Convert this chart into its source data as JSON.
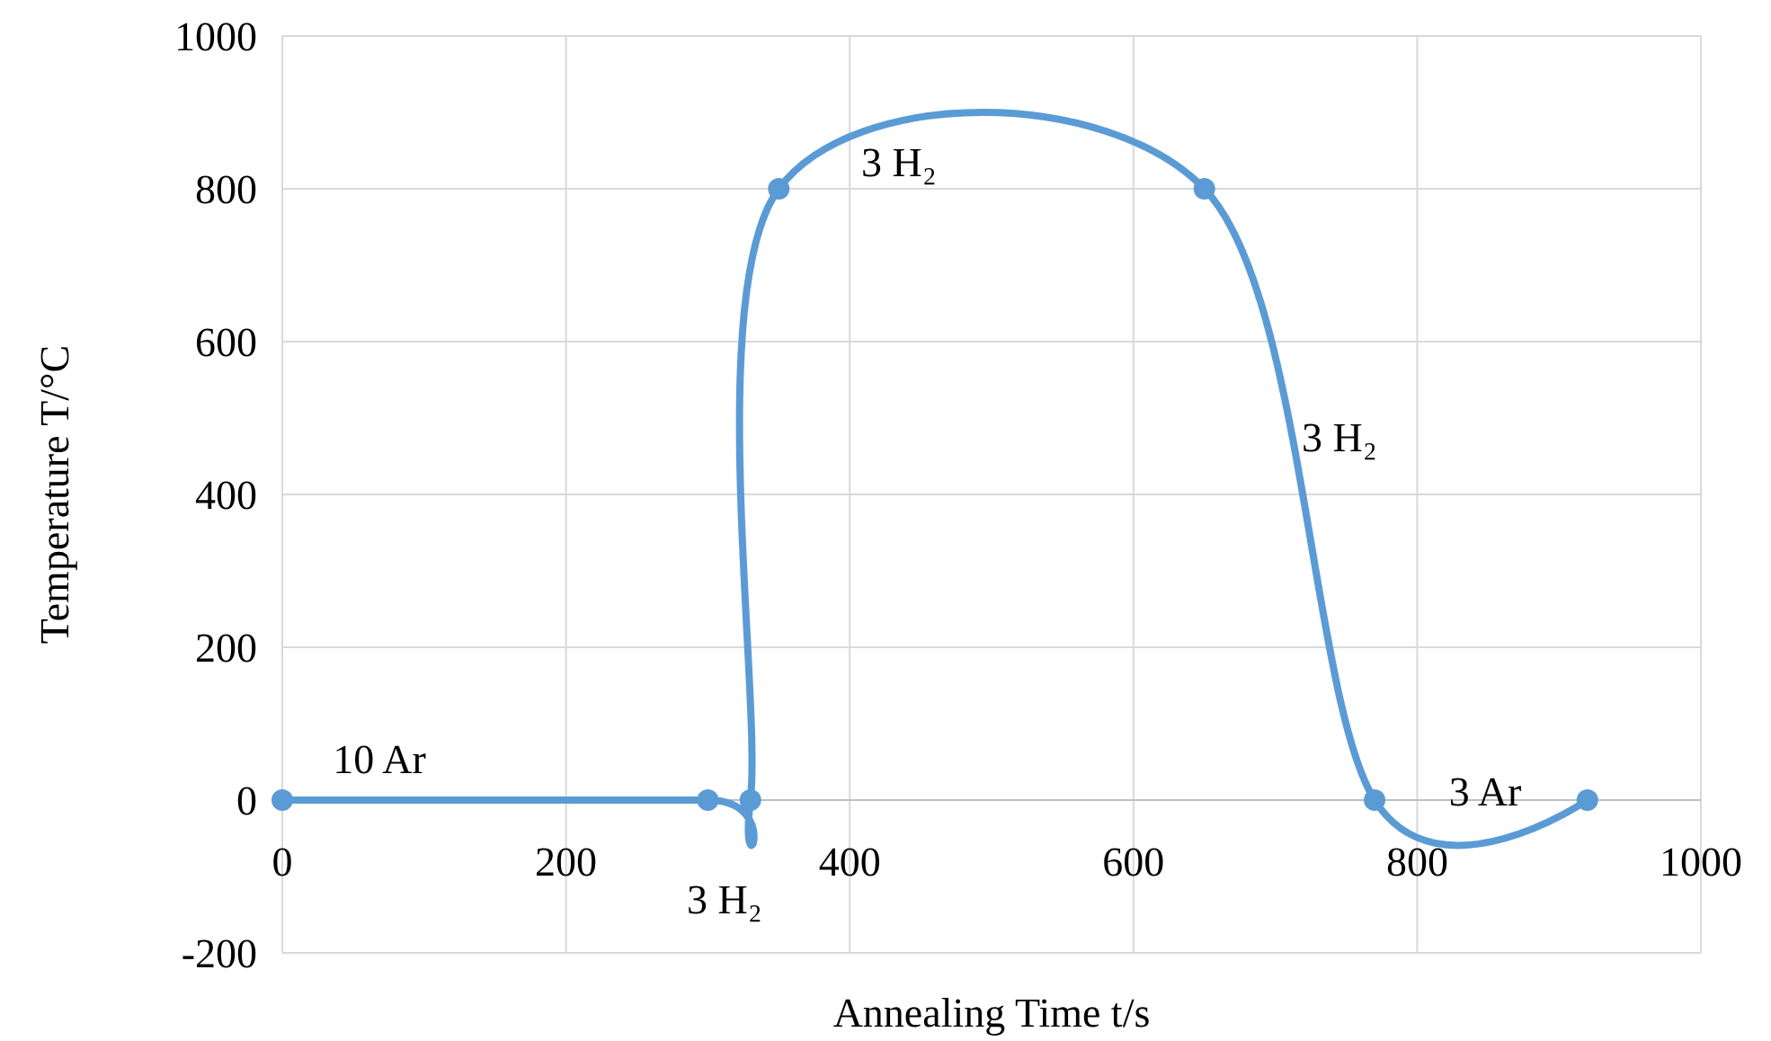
{
  "chart_data": {
    "type": "line",
    "xlabel": "Annealing Time t/s",
    "ylabel": "Temperature T/°C",
    "x": [
      0,
      300,
      330,
      350,
      650,
      770,
      920
    ],
    "series": [
      {
        "color": "#5b9bd5",
        "values": [
          0,
          0,
          0,
          800,
          800,
          0,
          0
        ]
      }
    ],
    "xlim": [
      0,
      1000
    ],
    "xticks": [
      0,
      200,
      400,
      600,
      800,
      1000
    ],
    "ylim": [
      -200,
      1000
    ],
    "yticks": [
      -200,
      0,
      200,
      400,
      600,
      800,
      1000
    ],
    "grid": true,
    "marker": "circle",
    "line_style": "solid",
    "annotations": [
      "10 Ar",
      "3 H₂",
      "3 H₂",
      "3 H₂",
      "3 Ar"
    ]
  }
}
